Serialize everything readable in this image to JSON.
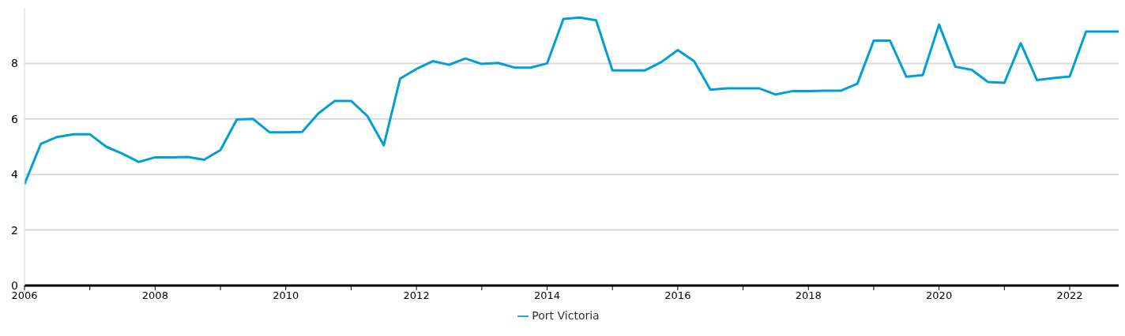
{
  "chart_data": {
    "type": "line",
    "x": [
      2006,
      2006.25,
      2006.5,
      2006.75,
      2007,
      2007.25,
      2007.5,
      2007.75,
      2008,
      2008.25,
      2008.5,
      2008.75,
      2009,
      2009.25,
      2009.5,
      2009.75,
      2010,
      2010.25,
      2010.5,
      2010.75,
      2011,
      2011.25,
      2011.5,
      2011.75,
      2012,
      2012.25,
      2012.5,
      2012.75,
      2013,
      2013.25,
      2013.5,
      2013.75,
      2014,
      2014.25,
      2014.5,
      2014.75,
      2015,
      2015.25,
      2015.5,
      2015.75,
      2016,
      2016.25,
      2016.5,
      2016.75,
      2017,
      2017.25,
      2017.5,
      2017.75,
      2018,
      2018.25,
      2018.5,
      2018.75,
      2019,
      2019.25,
      2019.5,
      2019.75,
      2020,
      2020.25,
      2020.5,
      2020.75,
      2021,
      2021.25,
      2021.5,
      2021.75,
      2022,
      2022.25,
      2022.5,
      2022.75
    ],
    "series": [
      {
        "name": "Port Victoria",
        "color": "#009fda",
        "values": [
          3.65,
          5.1,
          5.35,
          5.45,
          5.45,
          5.0,
          4.75,
          4.45,
          4.62,
          4.62,
          4.63,
          4.53,
          4.88,
          5.98,
          6.0,
          5.52,
          5.52,
          5.53,
          6.2,
          6.65,
          6.65,
          6.1,
          5.05,
          7.45,
          7.8,
          8.08,
          7.95,
          8.18,
          7.98,
          8.02,
          7.85,
          7.85,
          8.0,
          9.6,
          9.65,
          9.55,
          7.75,
          7.75,
          7.75,
          8.05,
          8.48,
          8.08,
          7.05,
          7.1,
          7.1,
          7.1,
          6.88,
          7.0,
          7.0,
          7.02,
          7.02,
          7.27,
          8.82,
          8.82,
          7.52,
          7.58,
          9.4,
          7.88,
          7.77,
          7.33,
          7.3,
          8.73,
          7.4,
          7.47,
          7.53,
          9.15,
          9.15,
          9.15
        ]
      }
    ],
    "xlim": [
      2006,
      2022.75
    ],
    "xticks": [
      2006,
      {
        "value": 2007,
        "label": null
      },
      2008,
      {
        "value": 2009,
        "label": null
      },
      2010,
      {
        "value": 2011,
        "label": null
      },
      2012,
      {
        "value": 2013,
        "label": null
      },
      2014,
      {
        "value": 2015,
        "label": null
      },
      2016,
      {
        "value": 2017,
        "label": null
      },
      2018,
      {
        "value": 2019,
        "label": null
      },
      2020,
      {
        "value": 2021,
        "label": null
      },
      2022
    ],
    "ylim": [
      0,
      10
    ],
    "yticks": [
      0,
      2,
      4,
      6,
      8
    ],
    "grid": "y",
    "legend": "bottom",
    "marker": "none",
    "line_style": "solid"
  }
}
